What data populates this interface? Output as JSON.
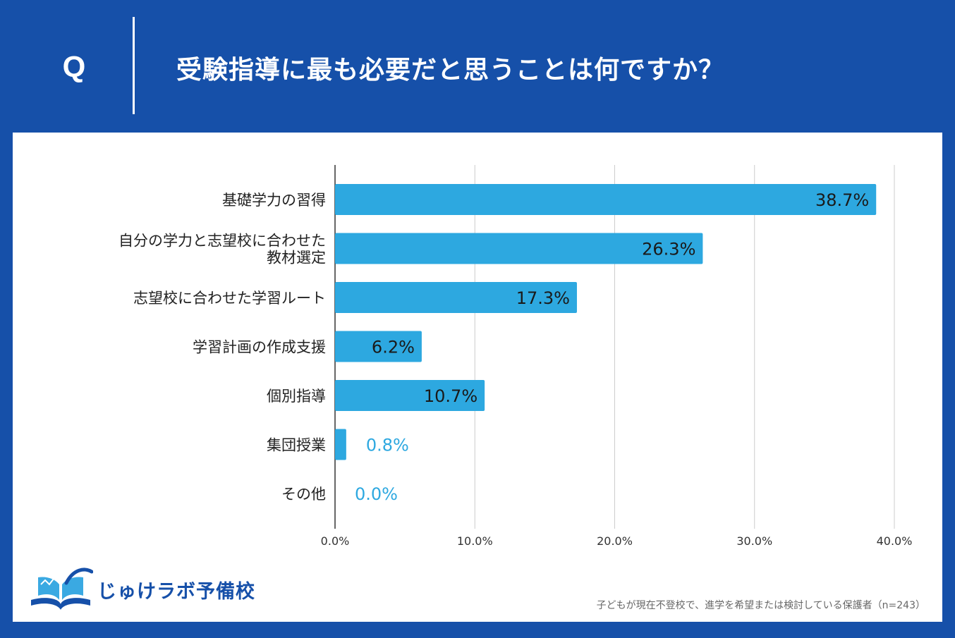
{
  "header": {
    "q_label": "Q",
    "question": "受験指導に最も必要だと思うことは何ですか？"
  },
  "colors": {
    "background": "#1650a9",
    "bar": "#2da8e0",
    "label_inside": "#1a1a1a",
    "label_outside": "#2da8e0",
    "grid": "#cccccc"
  },
  "chart_data": {
    "type": "bar",
    "orientation": "horizontal",
    "categories": [
      [
        "基礎学力の習得"
      ],
      [
        "自分の学力と志望校に合わせた",
        "教材選定"
      ],
      [
        "志望校に合わせた学習ルート"
      ],
      [
        "学習計画の作成支援"
      ],
      [
        "個別指導"
      ],
      [
        "集団授業"
      ],
      [
        "その他"
      ]
    ],
    "values": [
      38.7,
      26.3,
      17.3,
      6.2,
      10.7,
      0.8,
      0.0
    ],
    "value_labels": [
      "38.7%",
      "26.3%",
      "17.3%",
      "6.2%",
      "10.7%",
      "0.8%",
      "0.0%"
    ],
    "xlim": [
      0,
      40
    ],
    "xticks": [
      0,
      10,
      20,
      30,
      40
    ],
    "xtick_labels": [
      "0.0%",
      "10.0%",
      "20.0%",
      "30.0%",
      "40.0%"
    ],
    "grid": true,
    "title": "受験指導に最も必要だと思うことは何ですか？"
  },
  "logo": {
    "name": "じゅけラボ予備校"
  },
  "footnote": "子どもが現在不登校で、進学を希望または検討している保護者（n=243）"
}
